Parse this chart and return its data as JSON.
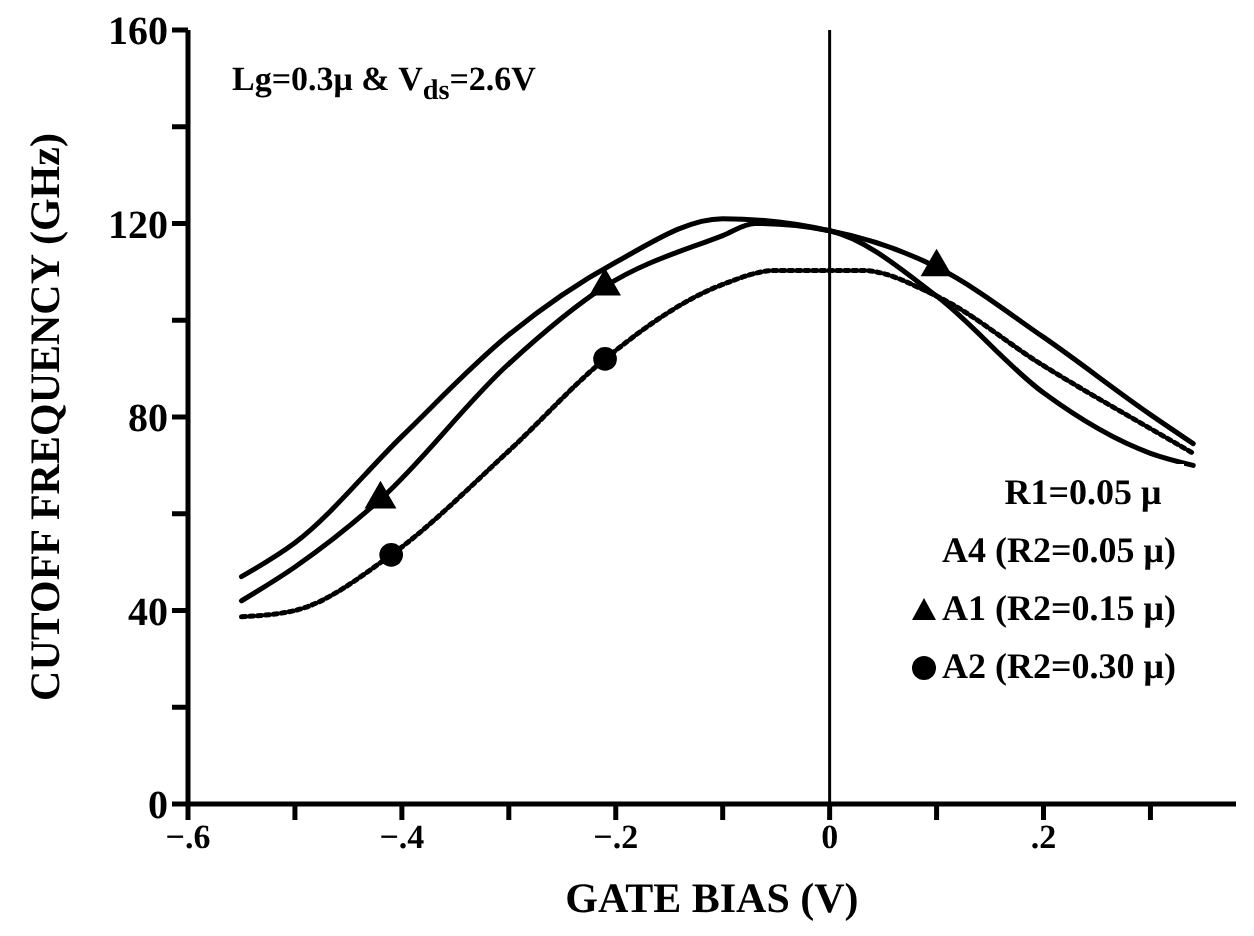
{
  "chart_data": {
    "type": "line",
    "xlabel": "GATE BIAS (V)",
    "ylabel": "CUTOFF FREQUENCY (GHz)",
    "xlim": [
      -0.6,
      0.38
    ],
    "ylim": [
      0,
      160
    ],
    "xticks": [
      {
        "value": -0.6,
        "label": "−.6"
      },
      {
        "value": -0.5,
        "label": null
      },
      {
        "value": -0.4,
        "label": "−.4"
      },
      {
        "value": -0.3,
        "label": null
      },
      {
        "value": -0.2,
        "label": "−.2"
      },
      {
        "value": -0.1,
        "label": null
      },
      0,
      {
        "value": 0.1,
        "label": null
      },
      {
        "value": 0.2,
        "label": ".2"
      },
      {
        "value": 0.3,
        "label": null
      }
    ],
    "yticks": [
      0,
      {
        "value": 20,
        "label": null
      },
      40,
      {
        "value": 60,
        "label": null
      },
      80,
      {
        "value": 100,
        "label": null
      },
      120,
      {
        "value": 140,
        "label": null
      },
      160
    ],
    "grid": false,
    "legend": "bottom right",
    "legend_title": "R1=0.05 μ",
    "annotations": [
      "Lg=0.3μ & V$_{ds}$=2.6V"
    ],
    "ref_lines": [
      {
        "axis": "x",
        "value": 0,
        "color": "#000000"
      }
    ],
    "series": [
      {
        "name": "A4 (R2=0.05 μ)",
        "color": "#000000",
        "line_style": "solid",
        "x": [
          -0.55,
          -0.5,
          -0.4,
          -0.3,
          -0.2,
          -0.1,
          0,
          0.1,
          0.2,
          0.3,
          0.34
        ],
        "values": [
          47,
          54,
          76,
          97,
          112,
          121,
          118.5,
          105,
          85,
          72.5,
          70
        ]
      },
      {
        "color": "#000000",
        "line_style": "solid",
        "x": [
          -0.55,
          -0.5,
          -0.42,
          -0.3,
          -0.21,
          -0.1,
          -0.07,
          0,
          0.1,
          0.2,
          0.3,
          0.34
        ],
        "values": [
          42,
          49,
          63,
          91,
          107,
          117.5,
          120,
          118.5,
          111,
          96.5,
          80.5,
          74.5
        ]
      },
      {
        "color": "#000000",
        "line_style": "dotted",
        "x": [
          -0.55,
          -0.5,
          -0.41,
          -0.3,
          -0.21,
          -0.1,
          -0.05,
          0.03,
          0.1,
          0.2,
          0.3,
          0.34
        ],
        "values": [
          38.7,
          40,
          51.5,
          73,
          92,
          107.4,
          110.3,
          110.3,
          105,
          90.6,
          77.6,
          72.5
        ]
      },
      {
        "name": "A1 (R2=0.15 μ)",
        "type": "scatter",
        "marker": "triangle",
        "color": "#000000",
        "x": [
          -0.42,
          -0.21,
          0.1
        ],
        "values": [
          63,
          107,
          111
        ]
      },
      {
        "name": "A2 (R2=0.30 μ)",
        "type": "scatter",
        "marker": "circle",
        "color": "#000000",
        "x": [
          -0.41,
          -0.21
        ],
        "values": [
          51.5,
          92
        ]
      }
    ]
  }
}
